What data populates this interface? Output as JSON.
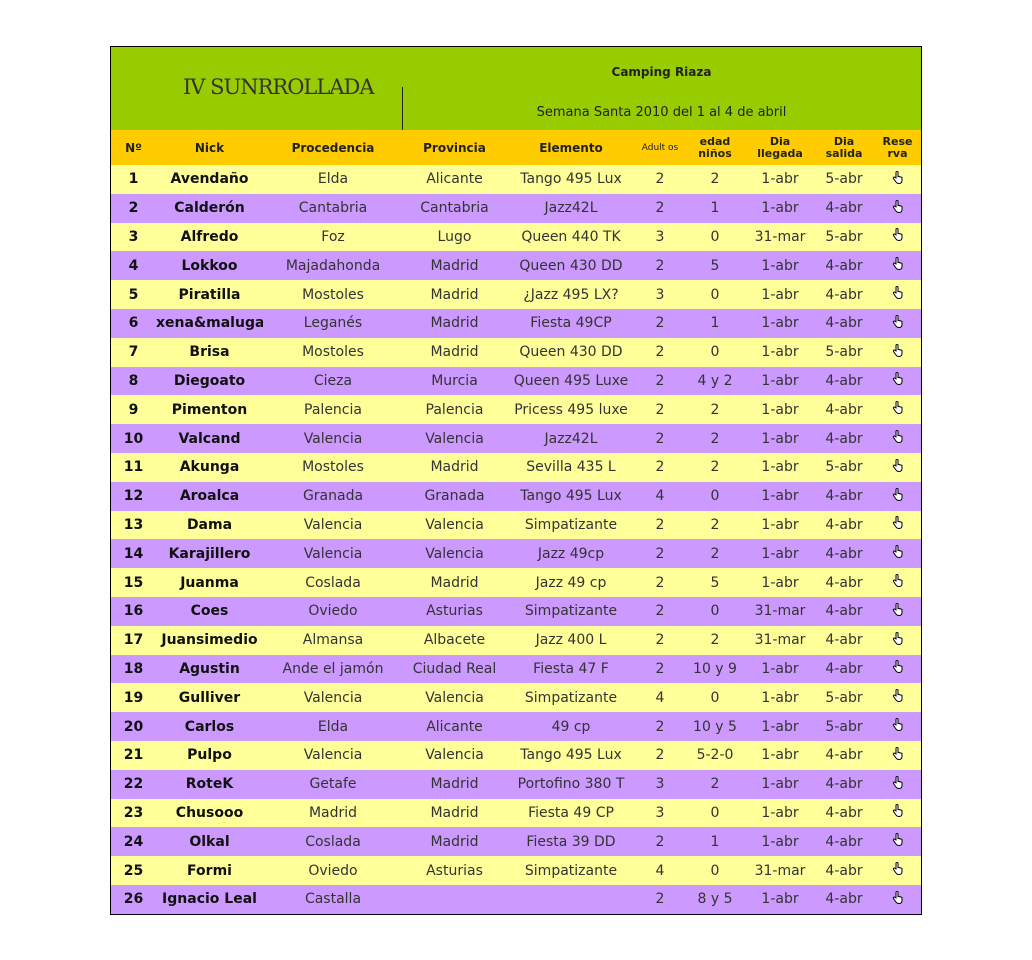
{
  "header": {
    "title": "IV SUNRROLLADA",
    "camping": "Camping Riaza",
    "dates": "Semana Santa 2010 del 1 al 4 de abril"
  },
  "columns": [
    "Nº",
    "Nick",
    "Procedencia",
    "Provincia",
    "Elemento",
    "Adult os",
    "edad niños",
    "Dia llegada",
    "Dia salida",
    "Rese rva"
  ],
  "reserva_icon": "hand-pointer-icon",
  "colors": {
    "banner": "#99cc00",
    "header": "#ffcc00",
    "row_odd": "#ffff99",
    "row_even": "#cc99ff"
  },
  "rows": [
    [
      "1",
      "Avendaño",
      "Elda",
      "Alicante",
      "Tango 495 Lux",
      "2",
      "2",
      "1-abr",
      "5-abr"
    ],
    [
      "2",
      "Calderón",
      "Cantabria",
      "Cantabria",
      "Jazz42L",
      "2",
      "1",
      "1-abr",
      "4-abr"
    ],
    [
      "3",
      "Alfredo",
      "Foz",
      "Lugo",
      "Queen 440 TK",
      "3",
      "0",
      "31-mar",
      "5-abr"
    ],
    [
      "4",
      "Lokkoo",
      "Majadahonda",
      "Madrid",
      "Queen 430 DD",
      "2",
      "5",
      "1-abr",
      "4-abr"
    ],
    [
      "5",
      "Piratilla",
      "Mostoles",
      "Madrid",
      "¿Jazz 495 LX?",
      "3",
      "0",
      "1-abr",
      "4-abr"
    ],
    [
      "6",
      "xena&maluga",
      "Leganés",
      "Madrid",
      "Fiesta 49CP",
      "2",
      "1",
      "1-abr",
      "4-abr"
    ],
    [
      "7",
      "Brisa",
      "Mostoles",
      "Madrid",
      "Queen 430 DD",
      "2",
      "0",
      "1-abr",
      "5-abr"
    ],
    [
      "8",
      "Diegoato",
      "Cieza",
      "Murcia",
      "Queen 495 Luxe",
      "2",
      "4 y 2",
      "1-abr",
      "4-abr"
    ],
    [
      "9",
      "Pimenton",
      "Palencia",
      "Palencia",
      "Pricess 495 luxe",
      "2",
      "2",
      "1-abr",
      "4-abr"
    ],
    [
      "10",
      "Valcand",
      "Valencia",
      "Valencia",
      "Jazz42L",
      "2",
      "2",
      "1-abr",
      "4-abr"
    ],
    [
      "11",
      "Akunga",
      "Mostoles",
      "Madrid",
      "Sevilla 435 L",
      "2",
      "2",
      "1-abr",
      "5-abr"
    ],
    [
      "12",
      "Aroalca",
      "Granada",
      "Granada",
      "Tango 495 Lux",
      "4",
      "0",
      "1-abr",
      "4-abr"
    ],
    [
      "13",
      "Dama",
      "Valencia",
      "Valencia",
      "Simpatizante",
      "2",
      "2",
      "1-abr",
      "4-abr"
    ],
    [
      "14",
      "Karajillero",
      "Valencia",
      "Valencia",
      "Jazz 49cp",
      "2",
      "2",
      "1-abr",
      "4-abr"
    ],
    [
      "15",
      "Juanma",
      "Coslada",
      "Madrid",
      "Jazz 49 cp",
      "2",
      "5",
      "1-abr",
      "4-abr"
    ],
    [
      "16",
      "Coes",
      "Oviedo",
      "Asturias",
      "Simpatizante",
      "2",
      "0",
      "31-mar",
      "4-abr"
    ],
    [
      "17",
      "Juansimedio",
      "Almansa",
      "Albacete",
      "Jazz 400 L",
      "2",
      "2",
      "31-mar",
      "4-abr"
    ],
    [
      "18",
      "Agustin",
      "Ande el jamón",
      "Ciudad Real",
      "Fiesta 47 F",
      "2",
      "10 y 9",
      "1-abr",
      "4-abr"
    ],
    [
      "19",
      "Gulliver",
      "Valencia",
      "Valencia",
      "Simpatizante",
      "4",
      "0",
      "1-abr",
      "5-abr"
    ],
    [
      "20",
      "Carlos",
      "Elda",
      "Alicante",
      "49 cp",
      "2",
      "10 y 5",
      "1-abr",
      "5-abr"
    ],
    [
      "21",
      "Pulpo",
      "Valencia",
      "Valencia",
      "Tango 495 Lux",
      "2",
      "5-2-0",
      "1-abr",
      "4-abr"
    ],
    [
      "22",
      "RoteK",
      "Getafe",
      "Madrid",
      "Portofino 380 T",
      "3",
      "2",
      "1-abr",
      "4-abr"
    ],
    [
      "23",
      "Chusooo",
      "Madrid",
      "Madrid",
      "Fiesta 49 CP",
      "3",
      "0",
      "1-abr",
      "4-abr"
    ],
    [
      "24",
      "Olkal",
      "Coslada",
      "Madrid",
      "Fiesta 39 DD",
      "2",
      "1",
      "1-abr",
      "4-abr"
    ],
    [
      "25",
      "Formi",
      "Oviedo",
      "Asturias",
      "Simpatizante",
      "4",
      "0",
      "31-mar",
      "4-abr"
    ],
    [
      "26",
      "Ignacio Leal",
      "Castalla",
      "",
      "",
      "2",
      "8 y 5",
      "1-abr",
      "4-abr"
    ]
  ]
}
